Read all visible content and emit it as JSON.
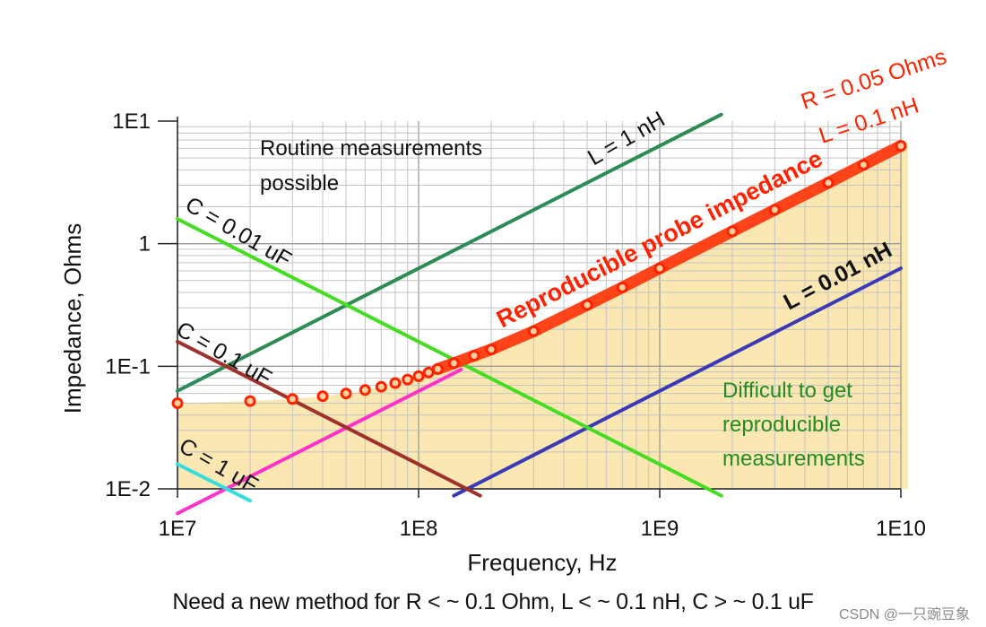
{
  "chart_data": {
    "type": "line",
    "xscale": "log",
    "yscale": "log",
    "xlim": [
      10000000.0,
      10000000000.0
    ],
    "ylim": [
      0.01,
      10
    ],
    "xlabel": "Frequency, Hz",
    "ylabel": "Impedance, Ohms",
    "x_ticks": [
      {
        "value": 10000000.0,
        "label": "1E7"
      },
      {
        "value": 100000000.0,
        "label": "1E8"
      },
      {
        "value": 1000000000.0,
        "label": "1E9"
      },
      {
        "value": 10000000000.0,
        "label": "1E10"
      }
    ],
    "y_ticks": [
      {
        "value": 0.01,
        "label": "1E-2"
      },
      {
        "value": 0.1,
        "label": "1E-1"
      },
      {
        "value": 1,
        "label": "1"
      },
      {
        "value": 10,
        "label": "1E1"
      }
    ],
    "grid": true,
    "series": [
      {
        "label": "L = 1 nH",
        "color": "#2e8b57",
        "x": [
          10000000.0,
          1800000000.0
        ],
        "y": [
          0.063,
          11.3
        ]
      },
      {
        "label": "L = 0.01 nH",
        "color": "#3a3ab8",
        "x": [
          140000000.0,
          10000000000.0
        ],
        "y": [
          0.0088,
          0.63
        ]
      },
      {
        "label": "",
        "color": "#ff33cc",
        "x": [
          10000000.0,
          150000000.0
        ],
        "y": [
          0.0063,
          0.094
        ]
      },
      {
        "label": "C = 0.01 uF",
        "color": "#44dd22",
        "x": [
          10000000.0,
          1800000000.0
        ],
        "y": [
          1.59,
          0.0088
        ]
      },
      {
        "label": "C = 0.1 uF",
        "color": "#a0302a",
        "x": [
          10000000.0,
          180000000.0
        ],
        "y": [
          0.159,
          0.0088
        ]
      },
      {
        "label": "C = 1 uF",
        "color": "#33dddd",
        "x": [
          10000000.0,
          20000000.0
        ],
        "y": [
          0.0159,
          0.008
        ]
      }
    ],
    "probe_points": {
      "label": "R = 0.05 Ohms L = 0.1 nH",
      "color": "#ff2200",
      "x": [
        10000000.0,
        20000000.0,
        30000000.0,
        40000000.0,
        50000000.0,
        60000000.0,
        70000000.0,
        80000000.0,
        90000000.0,
        100000000.0,
        110000000.0,
        120000000.0,
        140000000.0,
        170000000.0,
        200000000.0,
        300000000.0,
        500000000.0,
        700000000.0,
        1000000000.0,
        2000000000.0,
        3000000000.0,
        5000000000.0,
        7000000000.0,
        10000000000.0
      ],
      "y": [
        0.05,
        0.052,
        0.054,
        0.057,
        0.06,
        0.064,
        0.068,
        0.073,
        0.078,
        0.083,
        0.089,
        0.095,
        0.106,
        0.122,
        0.137,
        0.193,
        0.316,
        0.44,
        0.63,
        1.26,
        1.89,
        3.14,
        4.4,
        6.28
      ]
    },
    "annotations": [
      {
        "text_lines": [
          "Routine measurements",
          "possible"
        ],
        "color": "#111111"
      },
      {
        "text_lines": [
          "Difficult to get",
          "reproducible",
          "measurements"
        ],
        "color": "#228b22"
      },
      {
        "text": "Reproducible probe impedance",
        "color": "#ff2200"
      }
    ],
    "region_color": "#fbe7b2"
  },
  "labels": {
    "l1": "L = 1 nH",
    "l001": "L = 0.01 nH",
    "c001": "C = 0.01 uF",
    "c01": "C = 0.1 uF",
    "c1": "C = 1 uF",
    "r_label": "R = 0.05 Ohms",
    "l_label": "L = 0.1 nH",
    "probe": "Reproducible probe impedance",
    "routine_1": "Routine measurements",
    "routine_2": "possible",
    "difficult_1": "Difficult to get",
    "difficult_2": "reproducible",
    "difficult_3": "measurements"
  },
  "caption": "Need a new method for R < ~ 0.1 Ohm, L < ~ 0.1 nH, C > ~ 0.1 uF",
  "watermark": "CSDN @一只豌豆象"
}
